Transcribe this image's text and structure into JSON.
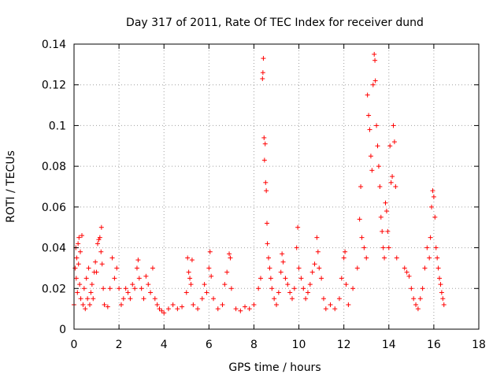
{
  "chart_data": {
    "type": "scatter",
    "title": "Day 317 of 2011, Rate Of TEC Index for receiver dund",
    "xlabel": "GPS time / hours",
    "ylabel": "ROTI / TECUs",
    "xlim": [
      0,
      18
    ],
    "ylim": [
      0,
      0.14
    ],
    "x_ticks": [
      "0",
      "2",
      "4",
      "6",
      "8",
      "10",
      "12",
      "14",
      "16",
      "18"
    ],
    "y_ticks": [
      "0",
      "0.02",
      "0.04",
      "0.06",
      "0.08",
      "0.1",
      "0.12",
      "0.14"
    ],
    "grid": true,
    "marker": "+",
    "series_color": "#ff0000",
    "series": [
      {
        "name": "ROTI",
        "points": [
          [
            0.0,
            0.012
          ],
          [
            0.05,
            0.03
          ],
          [
            0.08,
            0.04
          ],
          [
            0.1,
            0.025
          ],
          [
            0.12,
            0.035
          ],
          [
            0.15,
            0.018
          ],
          [
            0.18,
            0.042
          ],
          [
            0.2,
            0.032
          ],
          [
            0.22,
            0.045
          ],
          [
            0.25,
            0.022
          ],
          [
            0.28,
            0.038
          ],
          [
            0.3,
            0.015
          ],
          [
            0.35,
            0.046
          ],
          [
            0.4,
            0.012
          ],
          [
            0.45,
            0.02
          ],
          [
            0.5,
            0.01
          ],
          [
            0.55,
            0.025
          ],
          [
            0.6,
            0.015
          ],
          [
            0.65,
            0.03
          ],
          [
            0.7,
            0.012
          ],
          [
            0.75,
            0.018
          ],
          [
            0.8,
            0.022
          ],
          [
            0.85,
            0.015
          ],
          [
            0.9,
            0.028
          ],
          [
            0.95,
            0.033
          ],
          [
            1.0,
            0.028
          ],
          [
            1.05,
            0.042
          ],
          [
            1.1,
            0.044
          ],
          [
            1.15,
            0.045
          ],
          [
            1.2,
            0.038
          ],
          [
            1.22,
            0.05
          ],
          [
            1.25,
            0.032
          ],
          [
            1.3,
            0.02
          ],
          [
            1.35,
            0.012
          ],
          [
            1.5,
            0.011
          ],
          [
            1.6,
            0.02
          ],
          [
            1.7,
            0.035
          ],
          [
            1.8,
            0.025
          ],
          [
            1.9,
            0.03
          ],
          [
            2.0,
            0.02
          ],
          [
            2.1,
            0.012
          ],
          [
            2.2,
            0.015
          ],
          [
            2.3,
            0.02
          ],
          [
            2.4,
            0.018
          ],
          [
            2.5,
            0.015
          ],
          [
            2.6,
            0.022
          ],
          [
            2.7,
            0.02
          ],
          [
            2.8,
            0.03
          ],
          [
            2.85,
            0.034
          ],
          [
            2.9,
            0.025
          ],
          [
            3.0,
            0.02
          ],
          [
            3.1,
            0.015
          ],
          [
            3.2,
            0.026
          ],
          [
            3.3,
            0.022
          ],
          [
            3.4,
            0.018
          ],
          [
            3.5,
            0.03
          ],
          [
            3.6,
            0.015
          ],
          [
            3.7,
            0.012
          ],
          [
            3.8,
            0.01
          ],
          [
            3.9,
            0.009
          ],
          [
            4.0,
            0.008
          ],
          [
            4.2,
            0.01
          ],
          [
            4.4,
            0.012
          ],
          [
            4.6,
            0.01
          ],
          [
            4.8,
            0.011
          ],
          [
            5.0,
            0.018
          ],
          [
            5.05,
            0.035
          ],
          [
            5.1,
            0.028
          ],
          [
            5.15,
            0.025
          ],
          [
            5.2,
            0.022
          ],
          [
            5.25,
            0.034
          ],
          [
            5.3,
            0.012
          ],
          [
            5.5,
            0.01
          ],
          [
            5.7,
            0.015
          ],
          [
            5.8,
            0.022
          ],
          [
            5.9,
            0.018
          ],
          [
            6.0,
            0.03
          ],
          [
            6.05,
            0.038
          ],
          [
            6.1,
            0.026
          ],
          [
            6.2,
            0.015
          ],
          [
            6.4,
            0.01
          ],
          [
            6.6,
            0.012
          ],
          [
            6.7,
            0.022
          ],
          [
            6.8,
            0.028
          ],
          [
            6.9,
            0.037
          ],
          [
            6.95,
            0.035
          ],
          [
            7.0,
            0.02
          ],
          [
            7.2,
            0.01
          ],
          [
            7.4,
            0.009
          ],
          [
            7.6,
            0.011
          ],
          [
            7.8,
            0.01
          ],
          [
            8.0,
            0.012
          ],
          [
            8.2,
            0.02
          ],
          [
            8.3,
            0.025
          ],
          [
            8.38,
            0.123
          ],
          [
            8.4,
            0.126
          ],
          [
            8.42,
            0.133
          ],
          [
            8.45,
            0.094
          ],
          [
            8.47,
            0.083
          ],
          [
            8.5,
            0.091
          ],
          [
            8.52,
            0.072
          ],
          [
            8.55,
            0.068
          ],
          [
            8.58,
            0.052
          ],
          [
            8.6,
            0.042
          ],
          [
            8.65,
            0.035
          ],
          [
            8.7,
            0.03
          ],
          [
            8.75,
            0.025
          ],
          [
            8.8,
            0.02
          ],
          [
            8.9,
            0.015
          ],
          [
            9.0,
            0.012
          ],
          [
            9.1,
            0.018
          ],
          [
            9.2,
            0.028
          ],
          [
            9.25,
            0.037
          ],
          [
            9.3,
            0.033
          ],
          [
            9.4,
            0.025
          ],
          [
            9.5,
            0.022
          ],
          [
            9.6,
            0.018
          ],
          [
            9.7,
            0.015
          ],
          [
            9.8,
            0.02
          ],
          [
            9.9,
            0.04
          ],
          [
            9.95,
            0.05
          ],
          [
            10.0,
            0.03
          ],
          [
            10.1,
            0.025
          ],
          [
            10.2,
            0.02
          ],
          [
            10.3,
            0.015
          ],
          [
            10.4,
            0.018
          ],
          [
            10.5,
            0.022
          ],
          [
            10.6,
            0.028
          ],
          [
            10.7,
            0.032
          ],
          [
            10.8,
            0.045
          ],
          [
            10.85,
            0.038
          ],
          [
            10.9,
            0.03
          ],
          [
            11.0,
            0.025
          ],
          [
            11.1,
            0.015
          ],
          [
            11.2,
            0.01
          ],
          [
            11.4,
            0.012
          ],
          [
            11.6,
            0.01
          ],
          [
            11.8,
            0.015
          ],
          [
            11.9,
            0.025
          ],
          [
            12.0,
            0.035
          ],
          [
            12.05,
            0.038
          ],
          [
            12.1,
            0.022
          ],
          [
            12.2,
            0.012
          ],
          [
            12.4,
            0.02
          ],
          [
            12.6,
            0.03
          ],
          [
            12.7,
            0.054
          ],
          [
            12.75,
            0.07
          ],
          [
            12.8,
            0.045
          ],
          [
            12.9,
            0.04
          ],
          [
            13.0,
            0.035
          ],
          [
            13.05,
            0.115
          ],
          [
            13.1,
            0.105
          ],
          [
            13.15,
            0.098
          ],
          [
            13.2,
            0.085
          ],
          [
            13.25,
            0.078
          ],
          [
            13.3,
            0.12
          ],
          [
            13.35,
            0.135
          ],
          [
            13.38,
            0.132
          ],
          [
            13.4,
            0.122
          ],
          [
            13.45,
            0.1
          ],
          [
            13.5,
            0.09
          ],
          [
            13.55,
            0.08
          ],
          [
            13.6,
            0.07
          ],
          [
            13.65,
            0.055
          ],
          [
            13.7,
            0.048
          ],
          [
            13.75,
            0.04
          ],
          [
            13.8,
            0.035
          ],
          [
            13.85,
            0.062
          ],
          [
            13.9,
            0.058
          ],
          [
            13.95,
            0.048
          ],
          [
            14.0,
            0.04
          ],
          [
            14.05,
            0.09
          ],
          [
            14.1,
            0.072
          ],
          [
            14.15,
            0.075
          ],
          [
            14.2,
            0.1
          ],
          [
            14.25,
            0.092
          ],
          [
            14.3,
            0.07
          ],
          [
            14.35,
            0.035
          ],
          [
            14.7,
            0.03
          ],
          [
            14.8,
            0.028
          ],
          [
            14.9,
            0.026
          ],
          [
            15.0,
            0.02
          ],
          [
            15.1,
            0.015
          ],
          [
            15.2,
            0.012
          ],
          [
            15.3,
            0.01
          ],
          [
            15.4,
            0.015
          ],
          [
            15.5,
            0.02
          ],
          [
            15.6,
            0.03
          ],
          [
            15.7,
            0.04
          ],
          [
            15.8,
            0.035
          ],
          [
            15.85,
            0.045
          ],
          [
            15.9,
            0.06
          ],
          [
            15.95,
            0.068
          ],
          [
            16.0,
            0.065
          ],
          [
            16.05,
            0.055
          ],
          [
            16.1,
            0.04
          ],
          [
            16.15,
            0.035
          ],
          [
            16.2,
            0.03
          ],
          [
            16.25,
            0.025
          ],
          [
            16.3,
            0.022
          ],
          [
            16.35,
            0.018
          ],
          [
            16.4,
            0.015
          ],
          [
            16.45,
            0.012
          ]
        ]
      }
    ]
  }
}
